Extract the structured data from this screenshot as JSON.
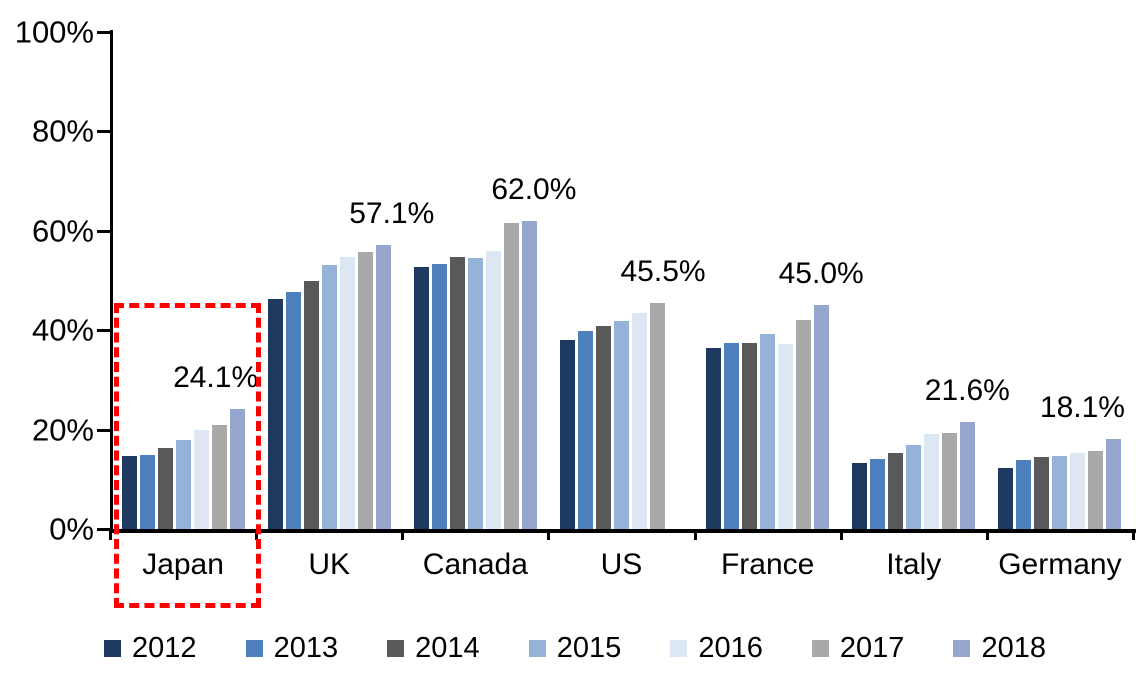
{
  "chart_data": {
    "type": "bar",
    "title": "",
    "categories": [
      "Japan",
      "UK",
      "Canada",
      "US",
      "France",
      "Italy",
      "Germany"
    ],
    "series": [
      {
        "name": "2012",
        "color": "#1F3A60",
        "values": [
          14.7,
          46.2,
          52.7,
          38.0,
          36.4,
          13.2,
          12.3
        ]
      },
      {
        "name": "2013",
        "color": "#4E80BD",
        "values": [
          14.9,
          47.7,
          53.3,
          39.9,
          37.5,
          14.0,
          13.9
        ]
      },
      {
        "name": "2014",
        "color": "#595959",
        "values": [
          16.4,
          50.0,
          54.8,
          40.8,
          37.5,
          15.4,
          14.4
        ]
      },
      {
        "name": "2015",
        "color": "#95B3D9",
        "values": [
          18.0,
          53.1,
          54.6,
          41.9,
          39.2,
          16.9,
          14.6
        ]
      },
      {
        "name": "2016",
        "color": "#DDE7F3",
        "values": [
          20.0,
          54.8,
          56.0,
          43.5,
          37.2,
          19.1,
          15.4
        ]
      },
      {
        "name": "2017",
        "color": "#A9A9A9",
        "values": [
          20.9,
          55.8,
          61.5,
          45.5,
          42.1,
          19.3,
          15.8
        ]
      },
      {
        "name": "2018",
        "color": "#97A6CE",
        "values": [
          24.1,
          57.1,
          62.0,
          null,
          45.0,
          21.6,
          18.1
        ]
      }
    ],
    "group_data_labels": [
      "24.1%",
      "57.1%",
      "62.0%",
      "45.5%",
      "45.0%",
      "21.6%",
      "18.1%"
    ],
    "y_axis": {
      "tick_labels_top_to_bottom": [
        "100%",
        "80%",
        "60%",
        "40%",
        "20%",
        "0%"
      ],
      "min": 0,
      "max": 100,
      "grid": false
    },
    "xlabel": "",
    "ylabel": "",
    "legend_position": "bottom",
    "legend_entries": [
      "2012",
      "2013",
      "2014",
      "2015",
      "2016",
      "2017",
      "2018"
    ],
    "annotations": [
      {
        "type": "dashed-rectangle",
        "target_category": "Japan",
        "color": "#FE0000"
      }
    ],
    "notes": "US group has no 2018 bar (missing value); each group's label marks its tallest/latest bar."
  }
}
